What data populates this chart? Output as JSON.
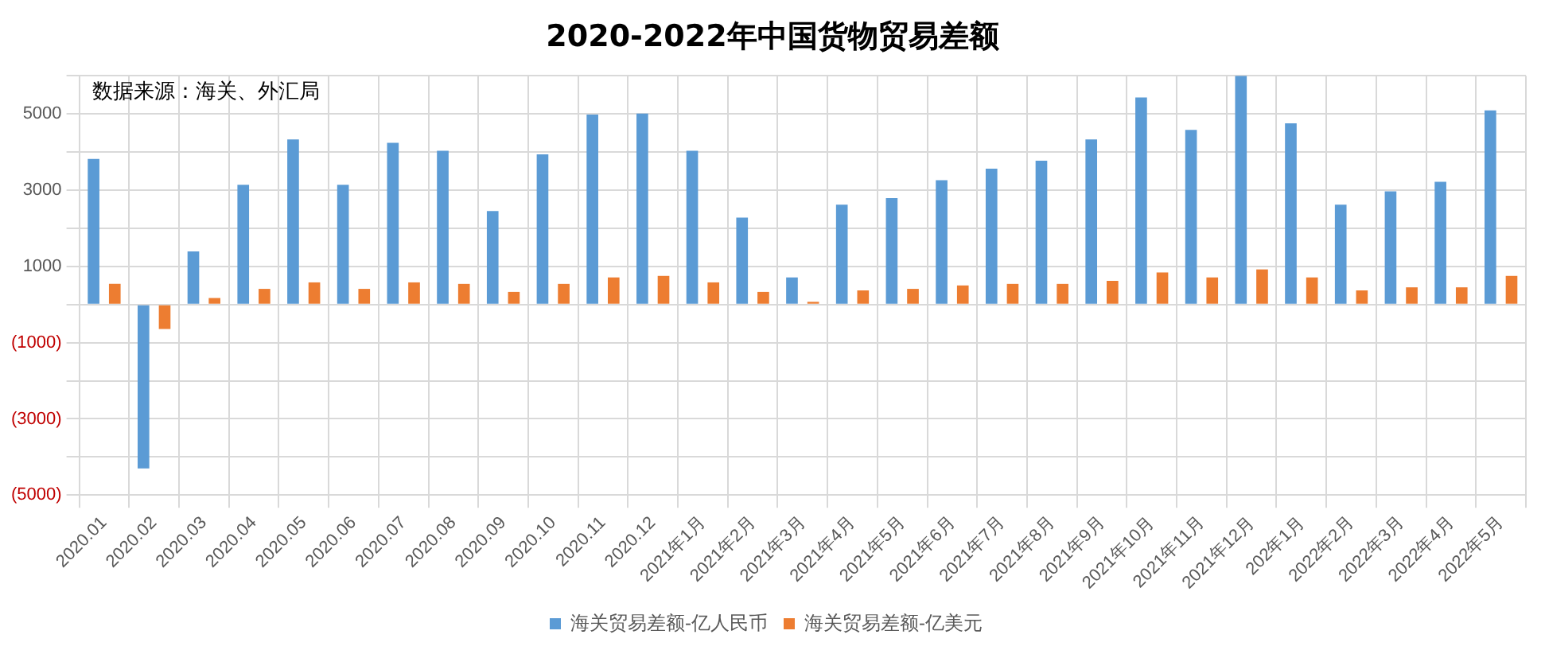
{
  "chart_data": {
    "type": "bar",
    "title": "2020-2022年中国货物贸易差额",
    "categories": [
      "2020.01",
      "2020.02",
      "2020.03",
      "2020.04",
      "2020.05",
      "2020.06",
      "2020.07",
      "2020.08",
      "2020.09",
      "2020.10",
      "2020.11",
      "2020.12",
      "2021年1月",
      "2021年2月",
      "2021年3月",
      "2021年4月",
      "2021年5月",
      "2021年6月",
      "2021年7月",
      "2021年8月",
      "2021年9月",
      "2021年10月",
      "2021年11月",
      "2021年12月",
      "202年1月",
      "2022年2月",
      "2022年3月",
      "2022年4月",
      "2022年5月"
    ],
    "series": [
      {
        "name": "海关贸易差额-亿人民币",
        "color": "#5b9bd5",
        "values": [
          3820,
          -4300,
          1390,
          3140,
          4330,
          3140,
          4240,
          4030,
          2450,
          3940,
          4980,
          5010,
          4030,
          2280,
          710,
          2620,
          2790,
          3260,
          3560,
          3770,
          4330,
          5430,
          4580,
          6000,
          4750,
          2620,
          2970,
          3220,
          5090
        ]
      },
      {
        "name": "海关贸易差额-亿美元",
        "color": "#ed7d31",
        "values": [
          540,
          -640,
          170,
          410,
          580,
          410,
          580,
          540,
          330,
          540,
          710,
          750,
          580,
          330,
          70,
          370,
          410,
          500,
          540,
          540,
          620,
          840,
          710,
          920,
          710,
          370,
          450,
          450,
          750
        ]
      }
    ],
    "ylim": [
      -5000,
      6000
    ],
    "yticks": [
      {
        "value": -5000,
        "label": "(5000)"
      },
      {
        "value": -4000,
        "label": null
      },
      {
        "value": -3000,
        "label": "(3000)"
      },
      {
        "value": -2000,
        "label": null
      },
      {
        "value": -1000,
        "label": "(1000)"
      },
      {
        "value": 0,
        "label": null
      },
      1000,
      {
        "value": 2000,
        "label": null
      },
      3000,
      {
        "value": 4000,
        "label": null
      },
      5000,
      {
        "value": 6000,
        "label": null
      }
    ],
    "grid": true,
    "legend": "bottom",
    "annotations": [
      "数据来源：海关、外汇局"
    ]
  }
}
